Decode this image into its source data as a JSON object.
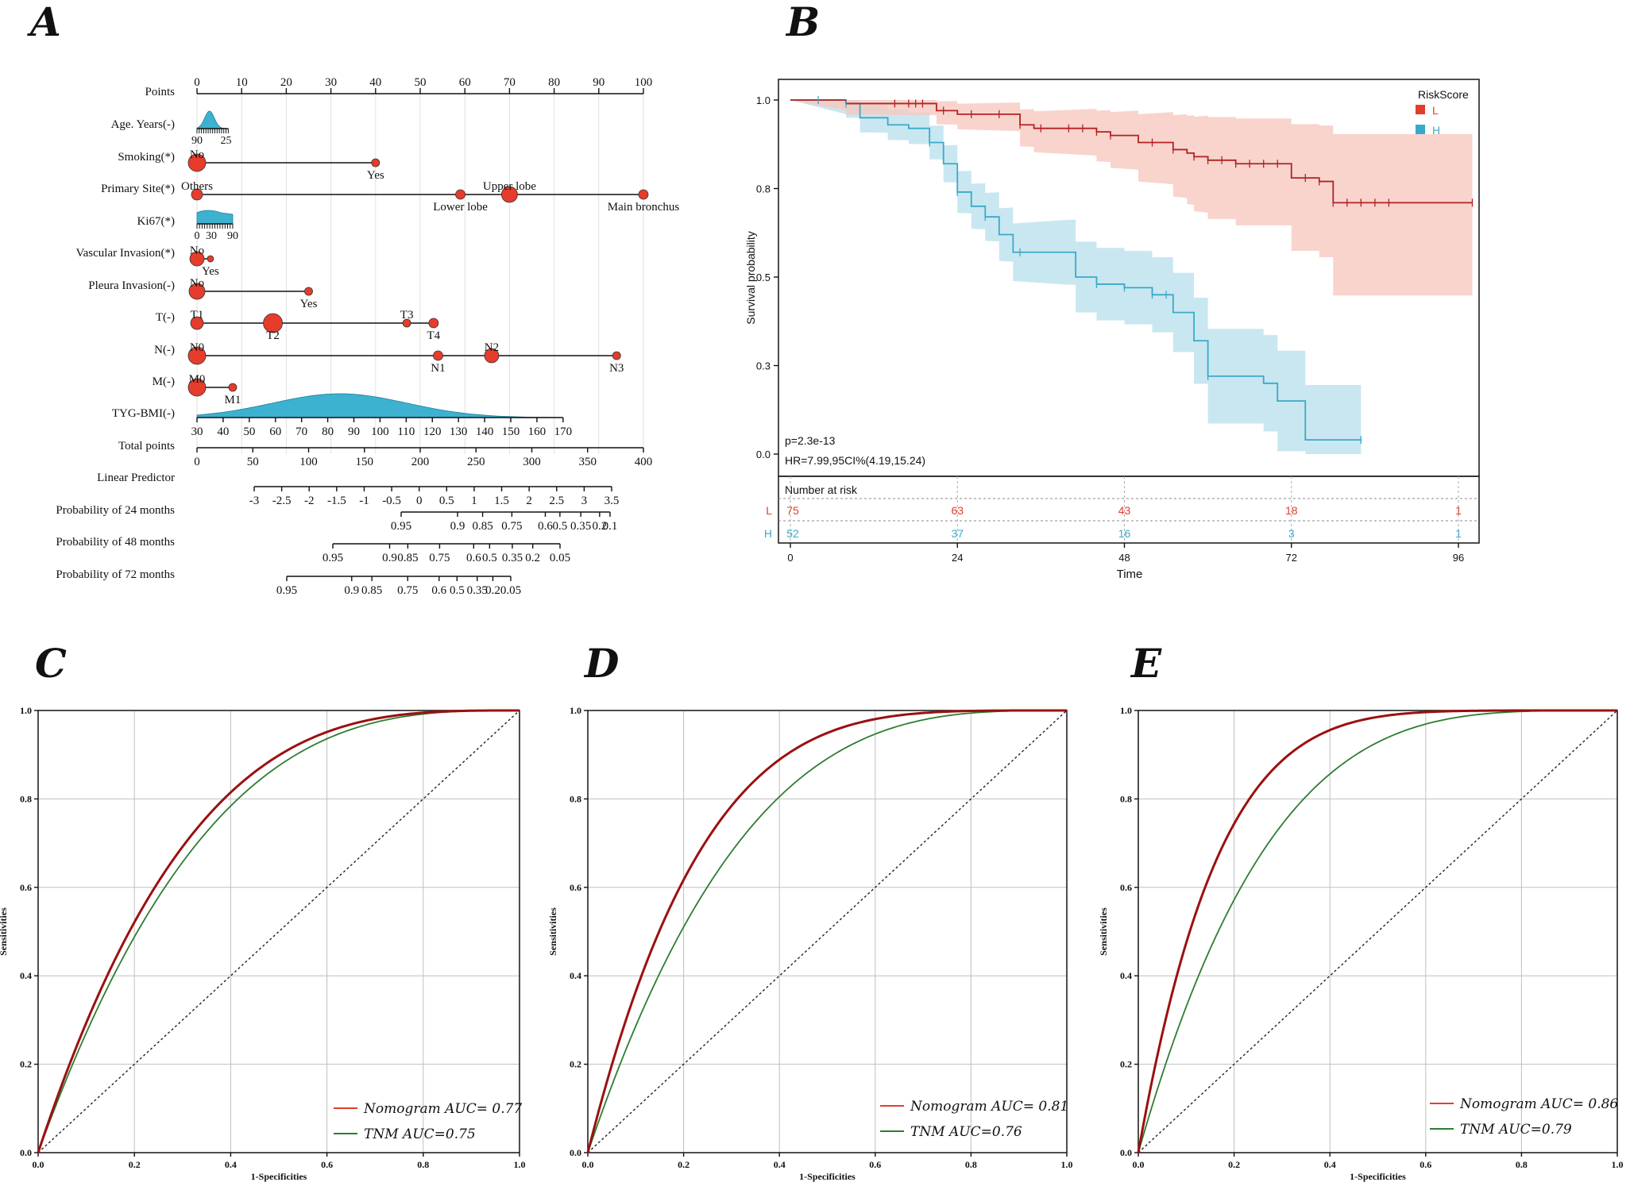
{
  "panels": {
    "a": "A",
    "b": "B",
    "c": "C",
    "d": "D",
    "e": "E"
  },
  "colors": {
    "red": "#e63c2c",
    "red_dark": "#b22222",
    "teal": "#3aa9c9",
    "teal_light": "#bfe3ef",
    "red_light": "#f6c9c0",
    "nomogram_curve": "#9b1010",
    "tnm_curve": "#2e7d32",
    "density": "#3cb2d0"
  },
  "chart_data": [
    {
      "type": "nomogram",
      "panel": "A",
      "rows": [
        {
          "label": "Points",
          "ticks": [
            0,
            10,
            20,
            30,
            40,
            50,
            60,
            70,
            80,
            90,
            100
          ],
          "range": [
            0,
            100
          ]
        },
        {
          "label": "Age. Years(-)",
          "ticks": [
            "90",
            "25"
          ],
          "points_span": [
            0,
            7
          ],
          "density": true
        },
        {
          "label": "Smoking(*)",
          "levels": [
            {
              "name": "No",
              "points": 0
            },
            {
              "name": "Yes",
              "points": 40
            }
          ]
        },
        {
          "label": "Primary Site(*)",
          "levels": [
            {
              "name": "Others",
              "points": 0
            },
            {
              "name": "Lower lobe",
              "points": 59
            },
            {
              "name": "Upper lobe",
              "points": 70
            },
            {
              "name": "Main bronchus",
              "points": 100
            }
          ]
        },
        {
          "label": "Ki67(*)",
          "ticks": [
            "0",
            "30",
            "90"
          ],
          "points_span": [
            0,
            8
          ],
          "density": true
        },
        {
          "label": "Vascular Invasion(*)",
          "levels": [
            {
              "name": "No",
              "points": 0
            },
            {
              "name": "Yes",
              "points": 3
            }
          ]
        },
        {
          "label": "Pleura Invasion(-)",
          "levels": [
            {
              "name": "No",
              "points": 0
            },
            {
              "name": "Yes",
              "points": 25
            }
          ]
        },
        {
          "label": "T(-)",
          "levels": [
            {
              "name": "T1",
              "points": 0
            },
            {
              "name": "T2",
              "points": 17
            },
            {
              "name": "T3",
              "points": 47
            },
            {
              "name": "T4",
              "points": 53
            }
          ]
        },
        {
          "label": "N(-)",
          "levels": [
            {
              "name": "N0",
              "points": 0
            },
            {
              "name": "N1",
              "points": 54
            },
            {
              "name": "N2",
              "points": 66
            },
            {
              "name": "N3",
              "points": 94
            }
          ]
        },
        {
          "label": "M(-)",
          "levels": [
            {
              "name": "M0",
              "points": 0
            },
            {
              "name": "M1",
              "points": 8
            }
          ]
        },
        {
          "label": "TYG-BMI(-)",
          "ticks": [
            "30",
            "40",
            "50",
            "60",
            "70",
            "80",
            "90",
            "100",
            "110",
            "120",
            "130",
            "140",
            "150",
            "160",
            "170"
          ],
          "points_span": [
            0,
            82
          ],
          "density": true
        },
        {
          "label": "Total points",
          "ticks": [
            "0",
            "50",
            "100",
            "150",
            "200",
            "250",
            "300",
            "350",
            "400"
          ],
          "range": [
            0,
            400
          ]
        },
        {
          "label": "Linear Predictor",
          "ticks": [
            "-3",
            "-2.5",
            "-2",
            "-1.5",
            "-1",
            "-0.5",
            "0",
            "0.5",
            "1",
            "1.5",
            "2",
            "2.5",
            "3",
            "3.5"
          ]
        },
        {
          "label": "Probability of 24 months",
          "ticks": [
            "0.95",
            "0.9",
            "0.85",
            "0.75",
            "0.6",
            "0.5",
            "0.35",
            "0.2",
            "0.1"
          ]
        },
        {
          "label": "Probability of 48 months",
          "ticks": [
            "0.95",
            "0.9",
            "0.85",
            "0.75",
            "0.6",
            "0.5",
            "0.35",
            "0.2",
            "0.05"
          ]
        },
        {
          "label": "Probability of 72 months",
          "ticks": [
            "0.95",
            "0.9",
            "0.85",
            "0.75",
            "0.6",
            "0.5",
            "0.35",
            "0.2",
            "0.05"
          ]
        }
      ]
    },
    {
      "type": "line",
      "subtype": "kaplan-meier",
      "panel": "B",
      "xlabel": "Time",
      "ylabel": "Survival probability",
      "xlim": [
        0,
        96
      ],
      "ylim": [
        0,
        1.0
      ],
      "x_ticks": [
        "0",
        "24",
        "48",
        "72",
        "96"
      ],
      "y_ticks": [
        "0.0",
        "0.3",
        "0.5",
        "0.8",
        "1.0"
      ],
      "legend_title": "RiskScore",
      "p_value": "p=2.3e-13",
      "hr_text": "HR=7.99,95CI%(4.19,15.24)",
      "series": [
        {
          "name": "L",
          "x": [
            0,
            8,
            15,
            20,
            21,
            24,
            30,
            33,
            35,
            40,
            44,
            46,
            50,
            54,
            55,
            57,
            58,
            60,
            64,
            70,
            72,
            76,
            78,
            98
          ],
          "y": [
            1.0,
            0.99,
            0.99,
            0.99,
            0.97,
            0.96,
            0.96,
            0.93,
            0.92,
            0.92,
            0.91,
            0.9,
            0.88,
            0.88,
            0.86,
            0.85,
            0.84,
            0.83,
            0.82,
            0.82,
            0.78,
            0.77,
            0.71,
            0.71
          ]
        },
        {
          "name": "H",
          "x": [
            0,
            8,
            10,
            14,
            17,
            20,
            22,
            24,
            26,
            28,
            30,
            32,
            40,
            41,
            44,
            48,
            52,
            55,
            58,
            60,
            68,
            70,
            74,
            82
          ],
          "y": [
            1.0,
            0.99,
            0.95,
            0.93,
            0.92,
            0.88,
            0.82,
            0.74,
            0.7,
            0.67,
            0.62,
            0.57,
            0.57,
            0.5,
            0.48,
            0.47,
            0.45,
            0.4,
            0.32,
            0.22,
            0.2,
            0.15,
            0.04,
            0.04
          ]
        }
      ],
      "risk_table": {
        "title": "Number at risk",
        "rows": [
          {
            "name": "L",
            "values": [
              75,
              63,
              43,
              18,
              1
            ]
          },
          {
            "name": "H",
            "values": [
              52,
              37,
              16,
              3,
              1
            ]
          }
        ]
      }
    },
    {
      "type": "line",
      "subtype": "roc",
      "panel": "C",
      "xlabel": "1-Specificities",
      "ylabel": "Sensitivities",
      "xlim": [
        0,
        1
      ],
      "ylim": [
        0,
        1
      ],
      "x_ticks": [
        "0.0",
        "0.2",
        "0.4",
        "0.6",
        "0.8",
        "1.0"
      ],
      "y_ticks": [
        "0.0",
        "0.2",
        "0.4",
        "0.6",
        "0.8",
        "1.0"
      ],
      "series": [
        {
          "name": "Nomogram",
          "auc": 0.77,
          "label": "Nomogram AUC= 0.77"
        },
        {
          "name": "TNM",
          "auc": 0.75,
          "label": "TNM AUC=0.75"
        }
      ]
    },
    {
      "type": "line",
      "subtype": "roc",
      "panel": "D",
      "xlabel": "1-Specificities",
      "ylabel": "Sensitivities",
      "xlim": [
        0,
        1
      ],
      "ylim": [
        0,
        1
      ],
      "x_ticks": [
        "0.0",
        "0.2",
        "0.4",
        "0.6",
        "0.8",
        "1.0"
      ],
      "y_ticks": [
        "0.0",
        "0.2",
        "0.4",
        "0.6",
        "0.8",
        "1.0"
      ],
      "series": [
        {
          "name": "Nomogram",
          "auc": 0.81,
          "label": "Nomogram AUC= 0.81"
        },
        {
          "name": "TNM",
          "auc": 0.76,
          "label": "TNM AUC=0.76"
        }
      ]
    },
    {
      "type": "line",
      "subtype": "roc",
      "panel": "E",
      "xlabel": "1-Specificities",
      "ylabel": "Sensitivities",
      "xlim": [
        0,
        1
      ],
      "ylim": [
        0,
        1
      ],
      "x_ticks": [
        "0.0",
        "0.2",
        "0.4",
        "0.6",
        "0.8",
        "1.0"
      ],
      "y_ticks": [
        "0.0",
        "0.2",
        "0.4",
        "0.6",
        "0.8",
        "1.0"
      ],
      "series": [
        {
          "name": "Nomogram",
          "auc": 0.86,
          "label": "Nomogram AUC= 0.86"
        },
        {
          "name": "TNM",
          "auc": 0.79,
          "label": "TNM AUC=0.79"
        }
      ]
    }
  ]
}
